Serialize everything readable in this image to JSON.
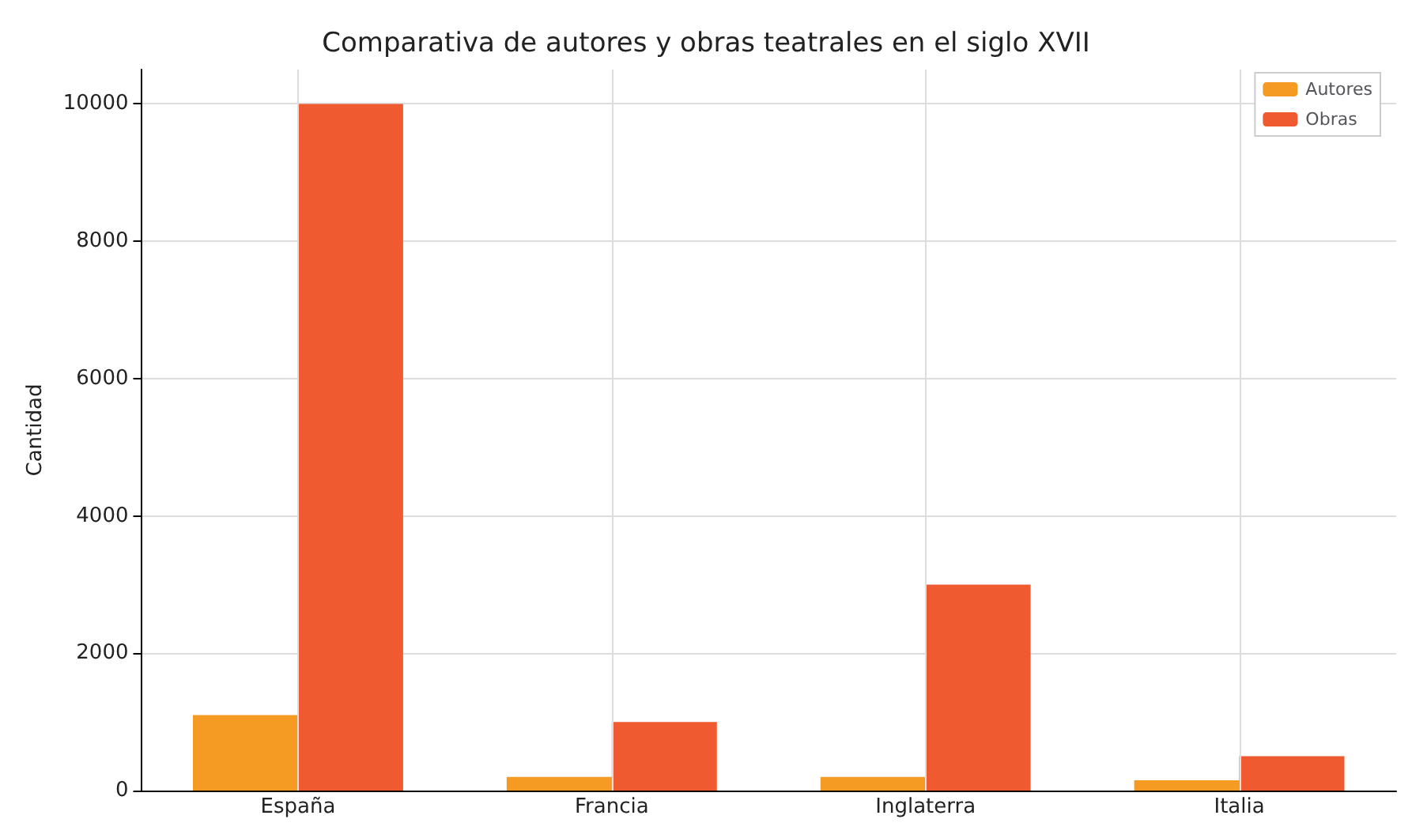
{
  "chart_data": {
    "type": "bar",
    "title": "Comparativa de autores y obras teatrales en el siglo XVII",
    "ylabel": "Cantidad",
    "categories": [
      "España",
      "Francia",
      "Inglaterra",
      "Italia"
    ],
    "series": [
      {
        "name": "Autores",
        "color": "#f59b23",
        "values": [
          1100,
          200,
          200,
          150
        ]
      },
      {
        "name": "Obras",
        "color": "#f05a30",
        "values": [
          10000,
          1000,
          3000,
          500
        ]
      }
    ],
    "ylim": [
      0,
      10500
    ],
    "yticks": [
      0,
      2000,
      4000,
      6000,
      8000,
      10000
    ],
    "grid": true,
    "legend": "top right"
  }
}
